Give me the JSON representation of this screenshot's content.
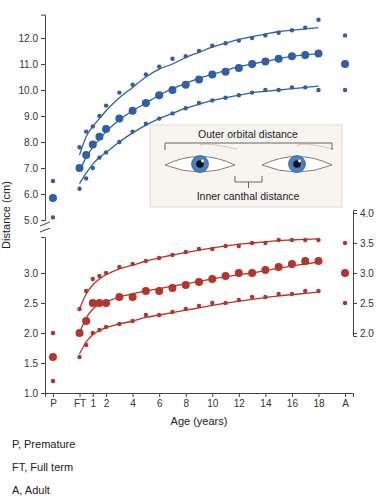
{
  "chart_data": [
    {
      "type": "scatter",
      "ylabel": "Distance (cm)",
      "annotations": [
        "Outer orbital distance"
      ],
      "tick_labels": "y",
      "x": [
        -2,
        0,
        0.5,
        1,
        1.5,
        2,
        3,
        4,
        5,
        6,
        7,
        8,
        9,
        10,
        11,
        12,
        13,
        14,
        15,
        16,
        17,
        18,
        20
      ],
      "ylim": [
        5.0,
        12.9
      ],
      "yticks": [
        {
          "value": 5,
          "label": "5.0"
        },
        {
          "value": 6,
          "label": "6.0"
        },
        {
          "value": 7,
          "label": "7.0"
        },
        {
          "value": 8,
          "label": "8.0"
        },
        {
          "value": 9,
          "label": "9.0"
        },
        {
          "value": 10,
          "label": "10.0"
        },
        {
          "value": 11,
          "label": "11.0"
        },
        {
          "value": 12,
          "label": "12.0"
        }
      ],
      "series": [
        {
          "color": "#2f5fa7",
          "marker": "dot",
          "values": [
            6.5,
            7.8,
            8.4,
            8.6,
            9.0,
            9.4,
            9.9,
            10.2,
            10.6,
            10.9,
            11.2,
            11.3,
            11.5,
            11.7,
            11.8,
            11.9,
            12.0,
            12.1,
            12.2,
            12.3,
            12.4,
            12.7,
            12.1
          ]
        },
        {
          "color": "#2f5fa7",
          "marker": "circle",
          "values": [
            5.85,
            7.0,
            7.5,
            7.9,
            8.2,
            8.5,
            8.9,
            9.2,
            9.5,
            9.8,
            10.0,
            10.2,
            10.4,
            10.6,
            10.7,
            10.85,
            11.0,
            11.1,
            11.2,
            11.3,
            11.35,
            11.4,
            11.0
          ]
        },
        {
          "color": "#2f5fa7",
          "marker": "dot",
          "values": [
            5.1,
            6.2,
            6.6,
            7.0,
            7.4,
            7.6,
            8.0,
            8.4,
            8.7,
            8.9,
            9.1,
            9.3,
            9.5,
            9.6,
            9.7,
            9.8,
            9.9,
            10.0,
            10.0,
            10.1,
            10.1,
            10.0,
            10.0
          ]
        },
        {
          "type": "line",
          "color": "#2f5fa7",
          "line_style": "solid",
          "values": [
            null,
            7.5,
            8.2,
            8.6,
            8.9,
            9.2,
            9.7,
            10.1,
            10.5,
            10.8,
            11.0,
            11.25,
            11.45,
            11.65,
            11.8,
            11.95,
            12.05,
            12.15,
            12.25,
            12.3,
            12.35,
            12.4,
            null
          ]
        },
        {
          "type": "line",
          "color": "#2f5fa7",
          "line_style": "solid",
          "values": [
            null,
            6.9,
            7.4,
            7.8,
            8.1,
            8.4,
            8.85,
            9.2,
            9.5,
            9.8,
            10.05,
            10.25,
            10.45,
            10.6,
            10.75,
            10.9,
            11.0,
            11.1,
            11.2,
            11.3,
            11.35,
            11.4,
            null
          ]
        },
        {
          "type": "line",
          "color": "#2f5fa7",
          "line_style": "solid",
          "values": [
            null,
            6.4,
            6.8,
            7.15,
            7.4,
            7.6,
            8.0,
            8.35,
            8.65,
            8.9,
            9.1,
            9.3,
            9.45,
            9.6,
            9.7,
            9.8,
            9.9,
            9.95,
            10.0,
            10.05,
            10.1,
            10.15,
            null
          ]
        }
      ]
    },
    {
      "type": "scatter",
      "xlabel": "Age (years)",
      "annotations": [
        "Inner canthal distance",
        "P, Premature",
        "FT, Full term",
        "A, Adult"
      ],
      "x": [
        -2,
        0,
        0.5,
        1,
        1.5,
        2,
        3,
        4,
        5,
        6,
        7,
        8,
        9,
        10,
        11,
        12,
        13,
        14,
        15,
        16,
        17,
        18,
        20
      ],
      "xlim": [
        -2.6,
        20.6
      ],
      "xticks": [
        {
          "value": -2,
          "label": "P"
        },
        {
          "value": 0,
          "label": "FT"
        },
        1,
        2,
        4,
        6,
        8,
        10,
        12,
        14,
        16,
        18,
        {
          "value": 20,
          "label": "A"
        }
      ],
      "ylim": [
        1.0,
        3.6
      ],
      "yticks": [
        {
          "value": 1,
          "label": "1.0"
        },
        1.5,
        {
          "value": 2,
          "label": "2.0"
        },
        2.5,
        {
          "value": 3,
          "label": "3.0"
        }
      ],
      "y2lim": [
        1.95,
        4.05
      ],
      "y2ticks": [
        {
          "value": 2,
          "label": "2.0"
        },
        2.5,
        {
          "value": 3,
          "label": "3.0"
        },
        3.5,
        {
          "value": 4,
          "label": "4.0"
        }
      ],
      "series": [
        {
          "color": "#b5342b",
          "marker": "dot",
          "values": [
            2.0,
            2.4,
            2.7,
            2.9,
            2.95,
            3.0,
            3.1,
            3.15,
            3.2,
            3.25,
            3.3,
            3.35,
            3.4,
            3.4,
            3.45,
            3.45,
            3.5,
            3.5,
            3.55,
            3.55,
            3.55,
            3.55,
            3.5
          ]
        },
        {
          "color": "#b5342b",
          "marker": "circle",
          "values": [
            1.6,
            2.0,
            2.2,
            2.5,
            2.5,
            2.5,
            2.6,
            2.6,
            2.7,
            2.7,
            2.75,
            2.8,
            2.85,
            2.9,
            2.95,
            3.0,
            3.0,
            3.05,
            3.1,
            3.15,
            3.2,
            3.2,
            3.0
          ]
        },
        {
          "color": "#b5342b",
          "marker": "dot",
          "values": [
            1.2,
            1.6,
            1.8,
            2.0,
            2.05,
            2.1,
            2.15,
            2.2,
            2.3,
            2.3,
            2.35,
            2.4,
            2.45,
            2.5,
            2.5,
            2.55,
            2.6,
            2.6,
            2.65,
            2.65,
            2.7,
            2.7,
            2.5
          ]
        },
        {
          "type": "line",
          "color": "#b5342b",
          "line_style": "solid",
          "values": [
            null,
            2.4,
            2.65,
            2.8,
            2.9,
            2.97,
            3.07,
            3.13,
            3.2,
            3.25,
            3.3,
            3.34,
            3.38,
            3.42,
            3.45,
            3.48,
            3.5,
            3.52,
            3.54,
            3.55,
            3.56,
            3.57,
            null
          ]
        },
        {
          "type": "line",
          "color": "#b5342b",
          "line_style": "solid",
          "values": [
            null,
            2.0,
            2.25,
            2.4,
            2.48,
            2.52,
            2.6,
            2.65,
            2.7,
            2.74,
            2.78,
            2.82,
            2.86,
            2.9,
            2.94,
            2.97,
            3.0,
            3.04,
            3.08,
            3.12,
            3.15,
            3.18,
            null
          ]
        },
        {
          "type": "line",
          "color": "#b5342b",
          "line_style": "solid",
          "values": [
            null,
            1.65,
            1.85,
            1.97,
            2.04,
            2.09,
            2.15,
            2.2,
            2.26,
            2.3,
            2.34,
            2.38,
            2.42,
            2.46,
            2.5,
            2.53,
            2.56,
            2.59,
            2.62,
            2.64,
            2.66,
            2.68,
            null
          ]
        }
      ]
    }
  ]
}
